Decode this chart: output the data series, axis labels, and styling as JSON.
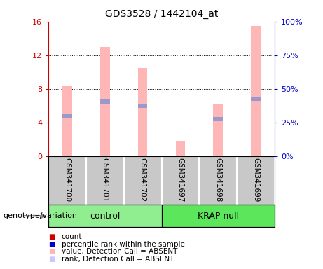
{
  "title": "GDS3528 / 1442104_at",
  "samples": [
    "GSM341700",
    "GSM341701",
    "GSM341702",
    "GSM341697",
    "GSM341698",
    "GSM341699"
  ],
  "pink_bars": [
    8.3,
    13.0,
    10.5,
    1.8,
    6.2,
    15.5
  ],
  "blue_markers": [
    4.7,
    6.5,
    6.0,
    null,
    4.4,
    6.8
  ],
  "ylim_left": [
    0,
    16
  ],
  "ylim_right": [
    0,
    100
  ],
  "yticks_left": [
    0,
    4,
    8,
    12,
    16
  ],
  "yticks_right": [
    0,
    25,
    50,
    75,
    100
  ],
  "ytick_labels_right": [
    "0%",
    "25%",
    "50%",
    "75%",
    "100%"
  ],
  "left_axis_color": "#cc0000",
  "right_axis_color": "#0000cc",
  "pink_color": "#ffb6b6",
  "blue_color": "#9999cc",
  "control_color": "#90ee90",
  "krap_color": "#5ce65c",
  "legend_items": [
    {
      "color": "#cc0000",
      "label": "count"
    },
    {
      "color": "#0000cc",
      "label": "percentile rank within the sample"
    },
    {
      "color": "#ffb6b6",
      "label": "value, Detection Call = ABSENT"
    },
    {
      "color": "#c8c8ff",
      "label": "rank, Detection Call = ABSENT"
    }
  ],
  "genotype_label": "genotype/variation",
  "sample_bg": "#c8c8c8",
  "plot_bg": "white"
}
